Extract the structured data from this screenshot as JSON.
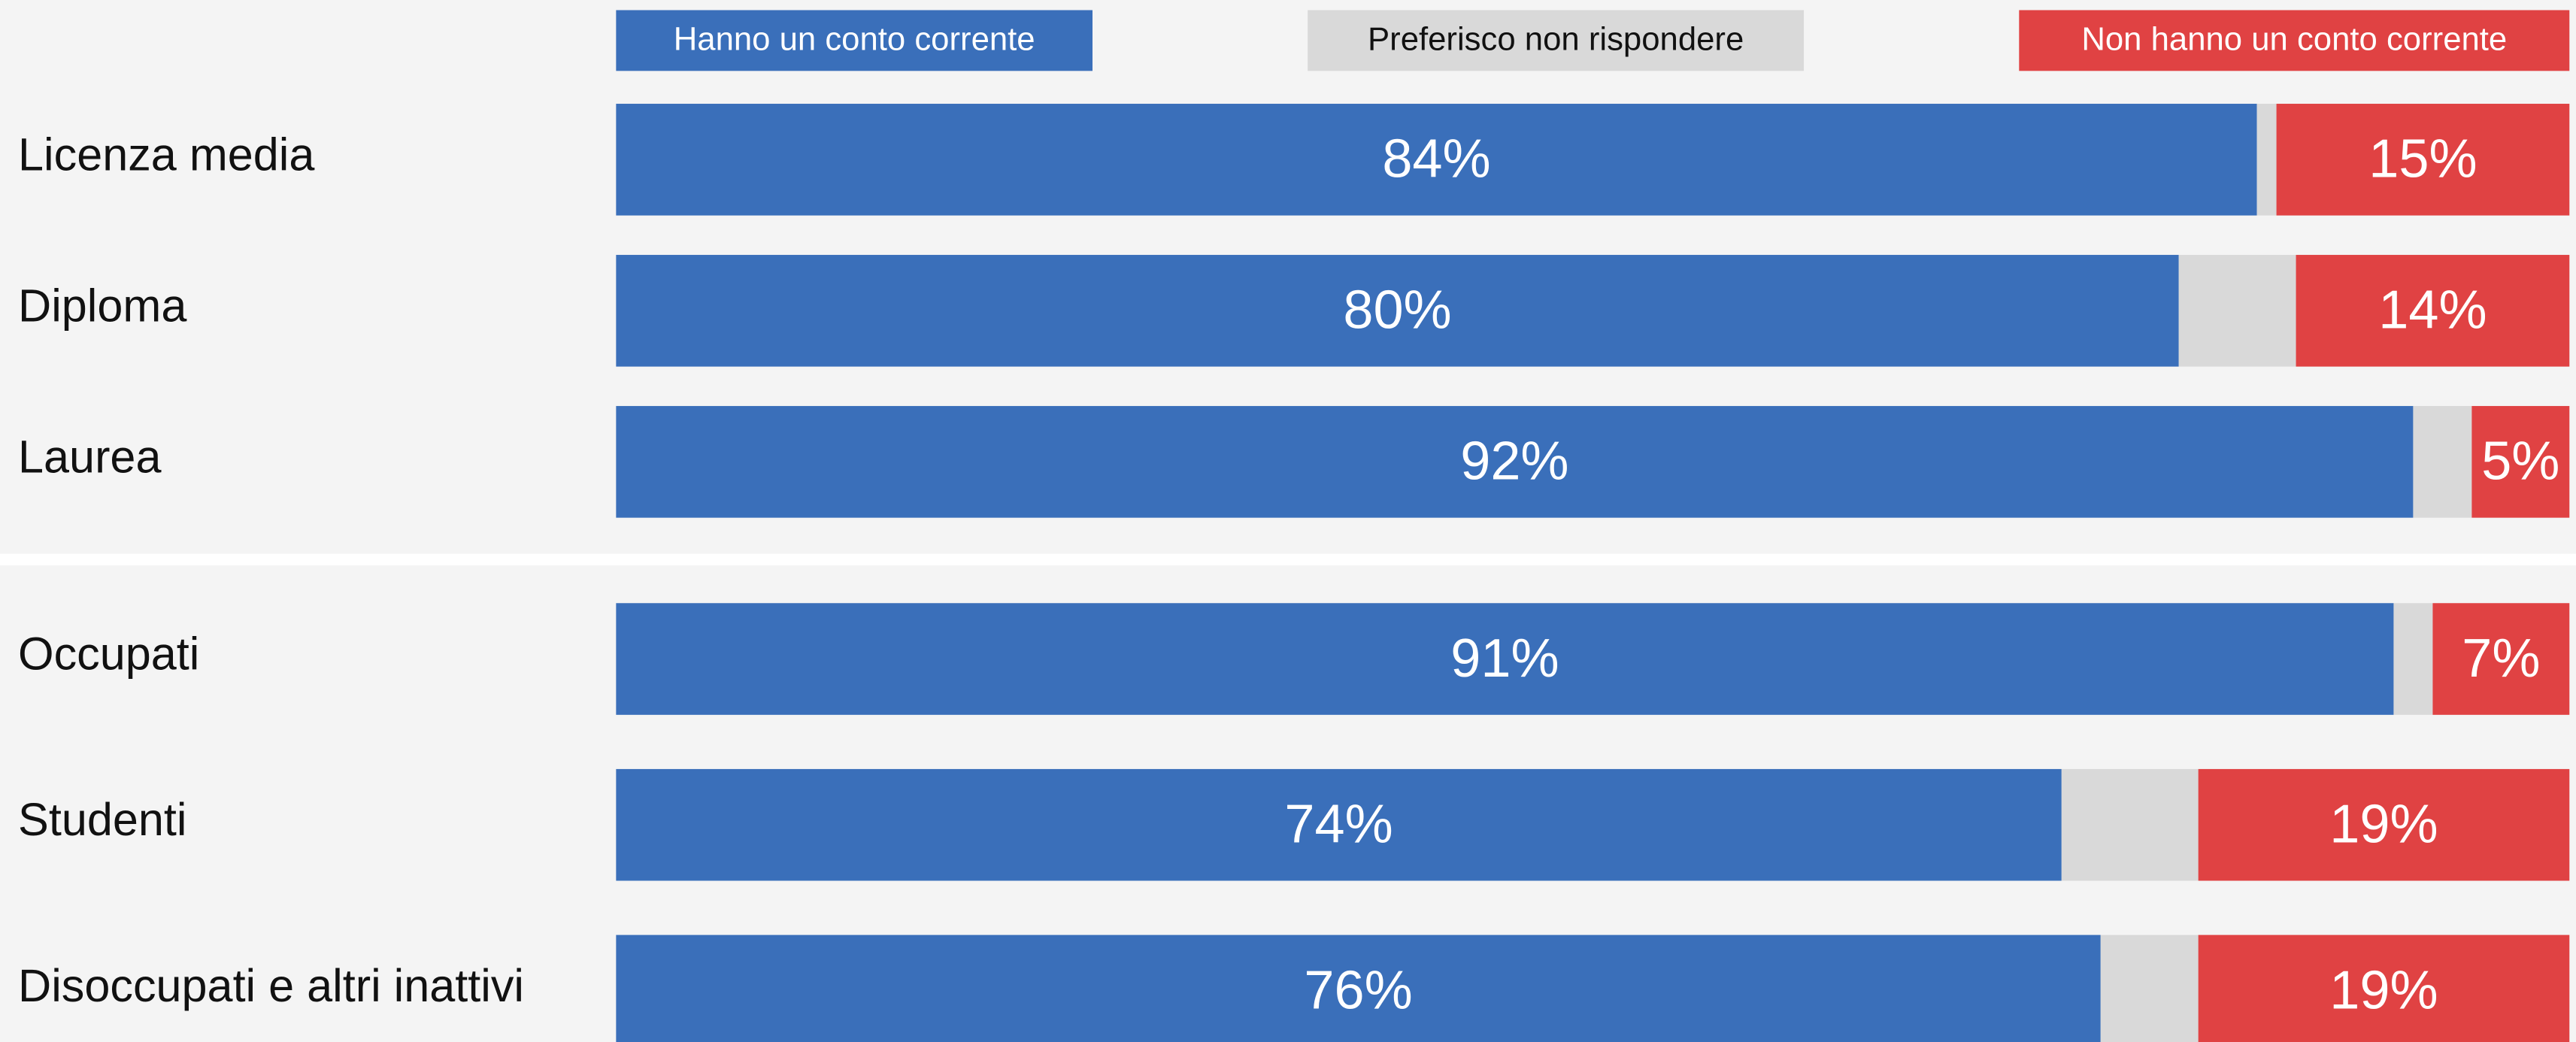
{
  "chart_data": {
    "type": "stacked_bar_horizontal",
    "categories": [
      "Licenza media",
      "Diploma",
      "Laurea",
      "Occupati",
      "Studenti",
      "Disoccupati e altri inattivi"
    ],
    "group_breaks": [
      3
    ],
    "xlim": [
      0,
      100
    ],
    "series": [
      {
        "name": "Hanno un conto corrente",
        "color": "#3a6fba",
        "values": [
          84,
          80,
          92,
          91,
          74,
          76
        ],
        "value_labels": [
          "84%",
          "80%",
          "92%",
          "91%",
          "74%",
          "76%"
        ]
      },
      {
        "name": "Preferisco non rispondere",
        "color": "#d9d9d9",
        "values": [
          1,
          6,
          3,
          2,
          7,
          5
        ]
      },
      {
        "name": "Non hanno un conto corrente",
        "color": "#e04243",
        "values": [
          15,
          14,
          5,
          7,
          19,
          19
        ],
        "value_labels": [
          "15%",
          "14%",
          "5%",
          "7%",
          "19%",
          "19%"
        ]
      }
    ]
  }
}
